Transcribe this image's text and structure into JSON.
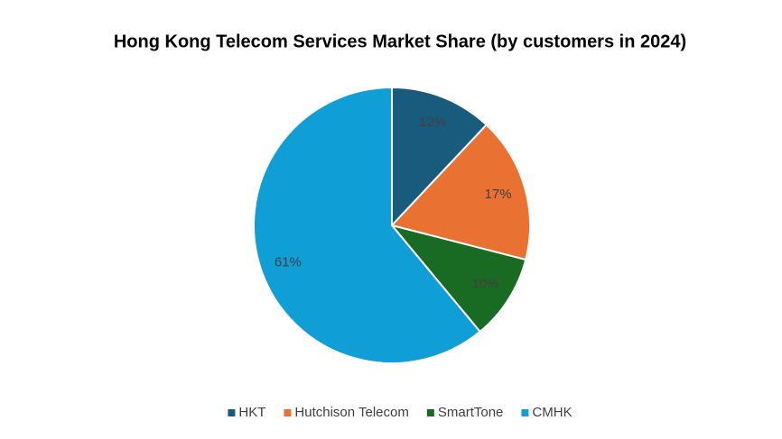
{
  "chart_data": {
    "type": "pie",
    "title": "Hong Kong Telecom Services Market Share (by customers in 2024)",
    "categories": [
      "HKT",
      "Hutchison Telecom",
      "SmartTone",
      "CMHK"
    ],
    "values": [
      12,
      17,
      10,
      61
    ],
    "value_labels": [
      "12%",
      "17%",
      "10%",
      "61%"
    ],
    "colors": [
      "#195b7c",
      "#e97132",
      "#196b24",
      "#0f9ed5"
    ],
    "legend": "bottom"
  }
}
